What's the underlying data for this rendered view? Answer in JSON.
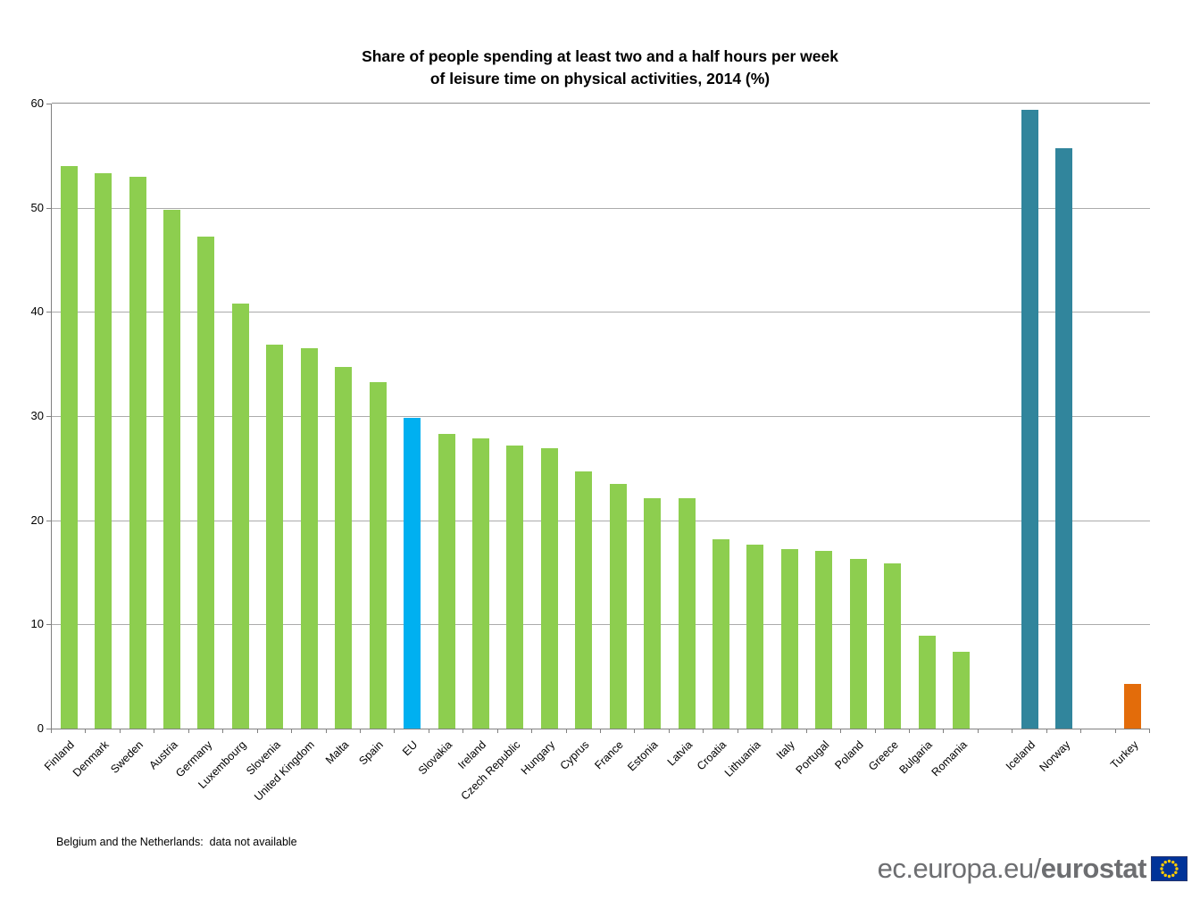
{
  "page": {
    "title_line1": "Share of people spending at least two and a half hours per week",
    "title_line2": "of leisure time on physical activities, 2014 (%)",
    "footnote": "Belgium and the Netherlands:  data not available",
    "branding": {
      "url_regular": "ec.europa.eu/",
      "url_bold": "eurostat",
      "flag_blue": "#003399",
      "flag_star_yellow": "#FFCC00",
      "text_gray": "#6D6E71"
    }
  },
  "chart_data": {
    "type": "bar",
    "title": "Share of people spending at least two and a half hours per week of leisure time on physical activities, 2014 (%)",
    "xlabel": "",
    "ylabel": "",
    "ylim": [
      0,
      60
    ],
    "ytick_step": 10,
    "ytick_labels": [
      "0",
      "10",
      "20",
      "30",
      "40",
      "50",
      "60"
    ],
    "grid": true,
    "legend_position": "none",
    "total_slots": 32,
    "axis_color": "#808080",
    "grid_color": "#ABABAB",
    "color_groups": {
      "eu_member": "#8DCE4F",
      "eu_aggregate": "#00B0F0",
      "efta": "#31859C",
      "candidate": "#E36C0A"
    },
    "bars": [
      {
        "label": "Finland",
        "value": 54.0,
        "slot": 0,
        "group": "eu_member"
      },
      {
        "label": "Denmark",
        "value": 53.3,
        "slot": 1,
        "group": "eu_member"
      },
      {
        "label": "Sweden",
        "value": 53.0,
        "slot": 2,
        "group": "eu_member"
      },
      {
        "label": "Austria",
        "value": 49.8,
        "slot": 3,
        "group": "eu_member"
      },
      {
        "label": "Germany",
        "value": 47.2,
        "slot": 4,
        "group": "eu_member"
      },
      {
        "label": "Luxembourg",
        "value": 40.8,
        "slot": 5,
        "group": "eu_member"
      },
      {
        "label": "Slovenia",
        "value": 36.9,
        "slot": 6,
        "group": "eu_member"
      },
      {
        "label": "United Kingdom",
        "value": 36.5,
        "slot": 7,
        "group": "eu_member"
      },
      {
        "label": "Malta",
        "value": 34.7,
        "slot": 8,
        "group": "eu_member"
      },
      {
        "label": "Spain",
        "value": 33.3,
        "slot": 9,
        "group": "eu_member"
      },
      {
        "label": "EU",
        "value": 29.8,
        "slot": 10,
        "group": "eu_aggregate"
      },
      {
        "label": "Slovakia",
        "value": 28.3,
        "slot": 11,
        "group": "eu_member"
      },
      {
        "label": "Ireland",
        "value": 27.9,
        "slot": 12,
        "group": "eu_member"
      },
      {
        "label": "Czech Republic",
        "value": 27.2,
        "slot": 13,
        "group": "eu_member"
      },
      {
        "label": "Hungary",
        "value": 26.9,
        "slot": 14,
        "group": "eu_member"
      },
      {
        "label": "Cyprus",
        "value": 24.7,
        "slot": 15,
        "group": "eu_member"
      },
      {
        "label": "France",
        "value": 23.5,
        "slot": 16,
        "group": "eu_member"
      },
      {
        "label": "Estonia",
        "value": 22.1,
        "slot": 17,
        "group": "eu_member"
      },
      {
        "label": "Latvia",
        "value": 22.1,
        "slot": 18,
        "group": "eu_member"
      },
      {
        "label": "Croatia",
        "value": 18.2,
        "slot": 19,
        "group": "eu_member"
      },
      {
        "label": "Lithuania",
        "value": 17.7,
        "slot": 20,
        "group": "eu_member"
      },
      {
        "label": "Italy",
        "value": 17.2,
        "slot": 21,
        "group": "eu_member"
      },
      {
        "label": "Portugal",
        "value": 17.1,
        "slot": 22,
        "group": "eu_member"
      },
      {
        "label": "Poland",
        "value": 16.3,
        "slot": 23,
        "group": "eu_member"
      },
      {
        "label": "Greece",
        "value": 15.9,
        "slot": 24,
        "group": "eu_member"
      },
      {
        "label": "Bulgaria",
        "value": 8.9,
        "slot": 25,
        "group": "eu_member"
      },
      {
        "label": "Romania",
        "value": 7.4,
        "slot": 26,
        "group": "eu_member"
      },
      {
        "label": "Iceland",
        "value": 59.4,
        "slot": 28,
        "group": "efta"
      },
      {
        "label": "Norway",
        "value": 55.7,
        "slot": 29,
        "group": "efta"
      },
      {
        "label": "Turkey",
        "value": 4.3,
        "slot": 31,
        "group": "candidate"
      }
    ],
    "annotations": [
      "Belgium and the Netherlands:  data not available"
    ]
  }
}
